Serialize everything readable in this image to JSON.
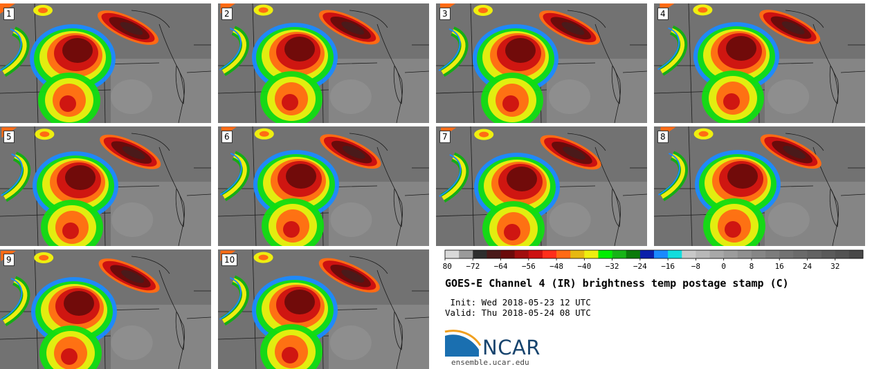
{
  "figure": {
    "title": "GOES-E Channel 4 (IR) brightness temp postage stamp (C)",
    "init_label": " Init: Wed 2018-05-23 12 UTC",
    "valid_label": "Valid: Thu 2018-05-24 08 UTC"
  },
  "panels": [
    "1",
    "2",
    "3",
    "4",
    "5",
    "6",
    "7",
    "8",
    "9",
    "10"
  ],
  "colorbar": {
    "tick_labels": [
      "−80",
      "−72",
      "−64",
      "−56",
      "−48",
      "−40",
      "−32",
      "−24",
      "−16",
      "−8",
      "0",
      "8",
      "16",
      "24",
      "32"
    ],
    "colors": [
      "#d9d9d9",
      "#9a9a9a",
      "#2e2e2e",
      "#4a1a1a",
      "#6b0b0b",
      "#a10e0e",
      "#cc1111",
      "#ff2e1a",
      "#ff6a14",
      "#e6b812",
      "#eeee10",
      "#00ee00",
      "#16b416",
      "#0a7a0a",
      "#0a1faa",
      "#1a8aff",
      "#11dddd",
      "#c8c8c8",
      "#b8b8b8",
      "#a8a8a8",
      "#9c9c9c",
      "#909090",
      "#868686",
      "#7c7c7c",
      "#727272",
      "#6a6a6a",
      "#626262",
      "#5a5a5a",
      "#525252",
      "#484848"
    ]
  },
  "logo": {
    "brand": "NCAR",
    "url": "ensemble.ucar.edu"
  }
}
